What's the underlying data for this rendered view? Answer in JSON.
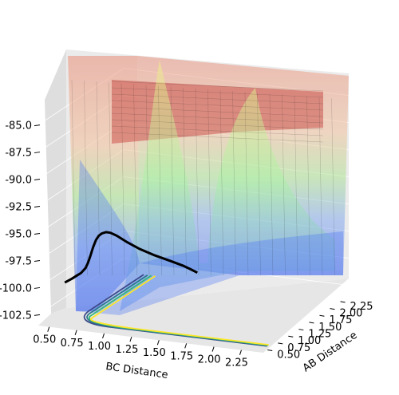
{
  "chart_data": {
    "type": "surface",
    "title": "",
    "xlabel": "BC Distance",
    "ylabel": "AB Distance",
    "zlabel": "",
    "x_ticks": [
      "0.50",
      "0.75",
      "1.00",
      "1.25",
      "1.50",
      "1.75",
      "2.00",
      "2.25"
    ],
    "y_ticks": [
      "0.50",
      "0.75",
      "1.00",
      "1.25",
      "1.50",
      "1.75",
      "2.00",
      "2.25"
    ],
    "z_ticks": [
      "-85.0",
      "-87.5",
      "-90.0",
      "-92.5",
      "-95.0",
      "-97.5",
      "-100.0",
      "-102.5"
    ],
    "xlim": [
      0.4,
      2.45
    ],
    "ylim": [
      0.4,
      2.45
    ],
    "zlim": [
      -103.5,
      -84.0
    ],
    "grid": true,
    "surface_colormap": "jet",
    "surface_alpha": 0.45,
    "contour_colors": [
      "#3b4a8a",
      "#2b7a8c",
      "#35b779",
      "#fde725"
    ],
    "trajectory_color": "#000000",
    "trajectory": {
      "bc": [
        0.52,
        0.55,
        0.58,
        0.62,
        0.66,
        0.7,
        0.72,
        0.74,
        0.755,
        0.77,
        0.78,
        0.79,
        0.8,
        0.81,
        0.83,
        0.86,
        0.9,
        0.95,
        1.0,
        1.04,
        1.06,
        1.07,
        1.075
      ],
      "ab": [
        0.72,
        0.725,
        0.73,
        0.735,
        0.74,
        0.745,
        0.75,
        0.76,
        0.78,
        0.81,
        0.85,
        0.9,
        0.97,
        1.05,
        1.15,
        1.3,
        1.5,
        1.75,
        2.0,
        2.2,
        2.32,
        2.4,
        2.44
      ],
      "energy": [
        -100.2,
        -100.0,
        -99.8,
        -99.5,
        -99.2,
        -98.7,
        -98.2,
        -97.5,
        -96.8,
        -96.2,
        -95.9,
        -95.8,
        -95.85,
        -96.1,
        -96.6,
        -97.5,
        -98.6,
        -99.8,
        -100.9,
        -101.8,
        -102.4,
        -102.8,
        -103.0
      ]
    }
  }
}
